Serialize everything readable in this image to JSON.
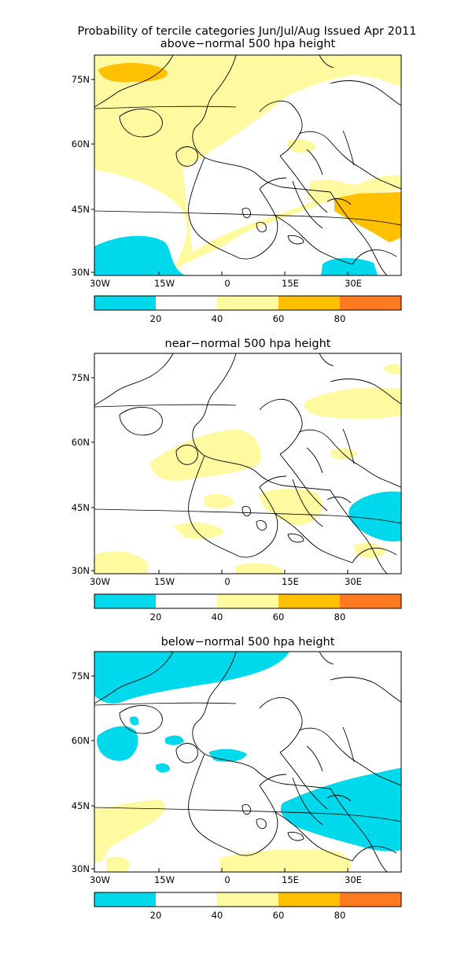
{
  "title": "Probability of tercile categories Jun/Jul/Aug Issued Apr 2011",
  "colors": {
    "cyan": "#00d8ec",
    "white": "#ffffff",
    "pale_yellow": "#fffaa0",
    "gold": "#ffc000",
    "orange": "#ff7a20",
    "outline": "#000000"
  },
  "colorbar": {
    "labels": [
      "20",
      "40",
      "60",
      "80"
    ]
  },
  "axes": {
    "lon_labels": [
      "30W",
      "15W",
      "0",
      "15E",
      "30E"
    ],
    "lat_labels": [
      "75N",
      "60N",
      "45N",
      "30N"
    ]
  },
  "panels": [
    {
      "id": "above",
      "title": "above−normal 500 hpa height"
    },
    {
      "id": "near",
      "title": "near−normal 500 hpa height"
    },
    {
      "id": "below",
      "title": "below−normal 500 hpa height"
    }
  ]
}
